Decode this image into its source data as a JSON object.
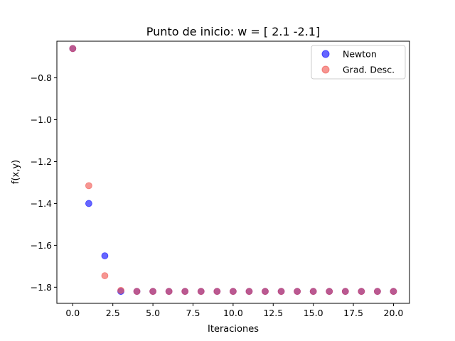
{
  "chart_data": {
    "type": "scatter",
    "title": "Punto de inicio: w = [ 2.1 -2.1]",
    "xlabel": "Iteraciones",
    "ylabel": "f(x,y)",
    "xlim": [
      -0.99,
      21.0
    ],
    "ylim": [
      -1.877,
      -0.625
    ],
    "xticks": [
      0.0,
      2.5,
      5.0,
      7.5,
      10.0,
      12.5,
      15.0,
      17.5,
      20.0
    ],
    "xtick_labels": [
      "0.0",
      "2.5",
      "5.0",
      "7.5",
      "10.0",
      "12.5",
      "15.0",
      "17.5",
      "20.0"
    ],
    "yticks": [
      -0.8,
      -1.0,
      -1.2,
      -1.4,
      -1.6,
      -1.8
    ],
    "ytick_labels": [
      "−0.8",
      "−1.0",
      "−1.2",
      "−1.4",
      "−1.6",
      "−1.8"
    ],
    "grid": false,
    "legend_position": "top-right",
    "series": [
      {
        "name": "Newton",
        "color": "#0000ff",
        "alpha": 0.6,
        "x": [
          0,
          1,
          2,
          3,
          4,
          5,
          6,
          7,
          8,
          9,
          10,
          11,
          12,
          13,
          14,
          15,
          16,
          17,
          18,
          19,
          20
        ],
        "y": [
          -0.66,
          -1.4,
          -1.65,
          -1.82,
          -1.82,
          -1.82,
          -1.82,
          -1.82,
          -1.82,
          -1.82,
          -1.82,
          -1.82,
          -1.82,
          -1.82,
          -1.82,
          -1.82,
          -1.82,
          -1.82,
          -1.82,
          -1.82,
          -1.82
        ]
      },
      {
        "name": "Grad. Desc.",
        "color": "#f0504a",
        "alpha": 0.6,
        "x": [
          0,
          1,
          2,
          3,
          4,
          5,
          6,
          7,
          8,
          9,
          10,
          11,
          12,
          13,
          14,
          15,
          16,
          17,
          18,
          19,
          20
        ],
        "y": [
          -0.66,
          -1.315,
          -1.745,
          -1.815,
          -1.82,
          -1.82,
          -1.82,
          -1.82,
          -1.82,
          -1.82,
          -1.82,
          -1.82,
          -1.82,
          -1.82,
          -1.82,
          -1.82,
          -1.82,
          -1.82,
          -1.82,
          -1.82,
          -1.82
        ]
      }
    ]
  }
}
